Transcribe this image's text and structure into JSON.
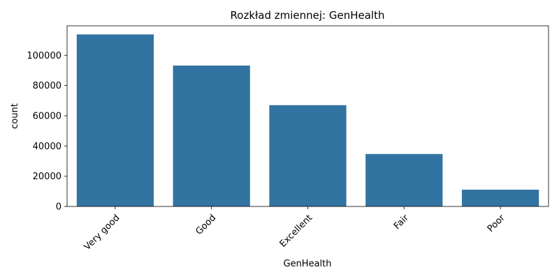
{
  "chart_data": {
    "type": "bar",
    "title": "Rozkład zmiennej: GenHealth",
    "xlabel": "GenHealth",
    "ylabel": "count",
    "categories": [
      "Very good",
      "Good",
      "Excellent",
      "Fair",
      "Poor"
    ],
    "values": [
      113800,
      93200,
      67000,
      34700,
      11100
    ],
    "ylim": [
      0,
      119500
    ],
    "yticks": [
      0,
      20000,
      40000,
      60000,
      80000,
      100000
    ],
    "ytick_labels": [
      "0",
      "20000",
      "40000",
      "60000",
      "80000",
      "100000"
    ],
    "bar_color": "#3274a1",
    "grid": false,
    "legend": false
  }
}
